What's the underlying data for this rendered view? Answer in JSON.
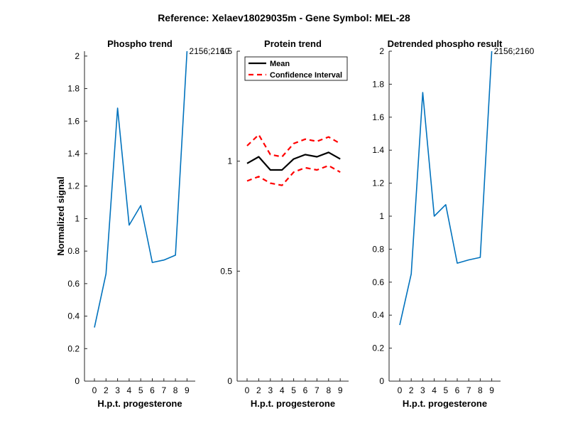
{
  "figure": {
    "title": "Reference:  Xelaev18029035m - Gene Symbol:  MEL-28"
  },
  "colors": {
    "phospho_line": "#0072BD",
    "mean_line": "#000000",
    "ci_line": "#FF0000",
    "axis": "#262626"
  },
  "chart_data": [
    {
      "type": "line",
      "title": "Phospho trend",
      "xlabel": "H.p.t. progesterone",
      "ylabel": "Normalized signal",
      "categories": [
        "0",
        "2",
        "3",
        "4",
        "5",
        "6",
        "7",
        "8",
        "9"
      ],
      "ylim": [
        0,
        2.03
      ],
      "yticks": [
        "0",
        "0.2",
        "0.4",
        "0.6",
        "0.8",
        "1",
        "1.2",
        "1.4",
        "1.6",
        "1.8",
        "2"
      ],
      "series": [
        {
          "values": [
            0.33,
            0.66,
            1.68,
            0.96,
            1.08,
            0.73,
            0.745,
            0.775,
            2.03
          ]
        }
      ],
      "annotation": "2156;2160"
    },
    {
      "type": "line",
      "title": "Protein trend",
      "xlabel": "H.p.t. progesterone",
      "ylabel": "",
      "categories": [
        "0",
        "2",
        "3",
        "4",
        "5",
        "6",
        "7",
        "8",
        "9"
      ],
      "ylim": [
        0,
        1.5
      ],
      "yticks": [
        "0",
        "0.5",
        "1",
        "1.5"
      ],
      "legend": {
        "position": "top-left",
        "entries": [
          "Mean",
          "Confidence Interval"
        ]
      },
      "series": [
        {
          "name": "Mean",
          "values": [
            0.99,
            1.02,
            0.96,
            0.96,
            1.01,
            1.03,
            1.02,
            1.04,
            1.01
          ]
        },
        {
          "name": "Confidence Interval",
          "values": [
            1.07,
            1.12,
            1.03,
            1.02,
            1.08,
            1.1,
            1.09,
            1.11,
            1.08
          ]
        },
        {
          "name": "Confidence Interval",
          "values": [
            0.91,
            0.93,
            0.9,
            0.89,
            0.95,
            0.97,
            0.96,
            0.98,
            0.95
          ]
        }
      ]
    },
    {
      "type": "line",
      "title": "Detrended phospho result",
      "xlabel": "H.p.t. progesterone",
      "ylabel": "",
      "categories": [
        "0",
        "2",
        "3",
        "4",
        "5",
        "6",
        "7",
        "8",
        "9"
      ],
      "ylim": [
        0,
        2.0
      ],
      "yticks": [
        "0",
        "0.2",
        "0.4",
        "0.6",
        "0.8",
        "1",
        "1.2",
        "1.4",
        "1.6",
        "1.8",
        "2"
      ],
      "series": [
        {
          "values": [
            0.34,
            0.65,
            1.75,
            1.0,
            1.07,
            0.715,
            0.735,
            0.75,
            2.0
          ]
        }
      ],
      "annotation": "2156;2160"
    }
  ]
}
